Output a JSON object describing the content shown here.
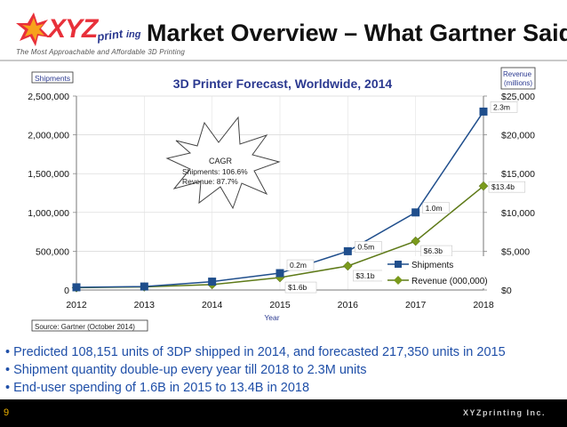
{
  "slide": {
    "title": "Market Overview – What Gartner Said",
    "logo_text": "XYZprinting",
    "tagline": "The Most Approachable and Affordable 3D Printing",
    "page_number": "9",
    "footer_brand": "XYZprinting Inc.",
    "accent_colors": {
      "shipments": "#1f4e8c",
      "revenue": "#5e7a18",
      "bullets": "#1f4fa8"
    }
  },
  "bullets": [
    "• Predicted 108,151 units of 3DP shipped in 2014, and forecasted 217,350 units in 2015",
    "• Shipment quantity double-up every year till 2018 to 2.3M units",
    "• End-user spending of 1.6B in 2015 to 13.4B in 2018"
  ],
  "chart_data": {
    "type": "line",
    "title": "3D Printer Forecast, Worldwide, 2014",
    "xlabel": "Year",
    "ylabel": "Shipments",
    "ylabel_right": "Revenue (millions)",
    "source": "Source: Gartner (October 2014)",
    "categories": [
      "2012",
      "2013",
      "2014",
      "2015",
      "2016",
      "2017",
      "2018"
    ],
    "ylim": [
      0,
      2500000
    ],
    "ylim_right": [
      0,
      25000
    ],
    "yticks_left": [
      "0",
      "500,000",
      "1,000,000",
      "1,500,000",
      "2,000,000",
      "2,500,000"
    ],
    "yticks_right": [
      "$0",
      "$5,000",
      "$10,000",
      "$15,000",
      "$20,000",
      "$25,000"
    ],
    "series": [
      {
        "name": "Shipments",
        "axis": "left",
        "values": [
          35000,
          45000,
          108151,
          217350,
          500000,
          1000000,
          2300000
        ],
        "labels": [
          "",
          "",
          "",
          "0.2m",
          "0.5m",
          "1.0m",
          "2.3m"
        ]
      },
      {
        "name": "Revenue (000,000)",
        "axis": "right",
        "values": [
          300,
          400,
          700,
          1600,
          3100,
          6300,
          13400
        ],
        "labels": [
          "",
          "",
          "",
          "$1.6b",
          "$3.1b",
          "$6.3b",
          "$13.4b"
        ]
      }
    ],
    "annotation": {
      "title": "CAGR",
      "lines": [
        "Shipments:  106.6%",
        "Revenue:     87.7%"
      ]
    }
  }
}
